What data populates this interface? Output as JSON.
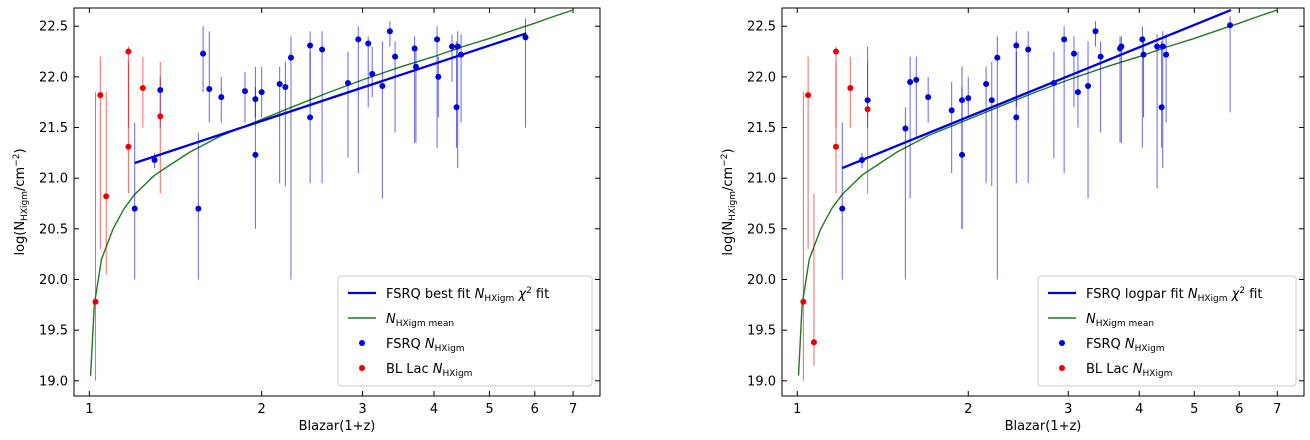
{
  "chart_data": [
    {
      "type": "scatter",
      "xlabel": "Blazar(1+z)",
      "ylabel_base": "log(N",
      "ylabel_sub": "HXigm",
      "ylabel_unit": "/cm",
      "ylabel_exp": "−2",
      "ylabel_close": ")",
      "xscale": "log",
      "xlim": [
        0.94,
        7.8
      ],
      "ylim": [
        18.85,
        22.68
      ],
      "xticks": [
        1,
        2,
        3,
        4,
        5,
        6,
        7
      ],
      "xtick_labels": [
        "1",
        "2",
        "3",
        "4",
        "5",
        "6",
        "7"
      ],
      "yticks": [
        19.0,
        19.5,
        20.0,
        20.5,
        21.0,
        21.5,
        22.0,
        22.5
      ],
      "ytick_labels": [
        "19.0",
        "19.5",
        "20.0",
        "20.5",
        "21.0",
        "21.5",
        "22.0",
        "22.5"
      ],
      "legend_position": "lower-right",
      "legend": [
        {
          "pre": "FSRQ best fit ",
          "var": "N",
          "sub": "HXigm",
          "post": " χ",
          "sup": "2",
          "post2": " fit",
          "kind": "line",
          "color": "#0000dd"
        },
        {
          "pre": "",
          "var": "N",
          "sub": "HXigm mean",
          "post": "",
          "sup": "",
          "post2": "",
          "kind": "thinline",
          "color": "#1f7a1f"
        },
        {
          "pre": "FSRQ ",
          "var": "N",
          "sub": "HXigm",
          "post": "",
          "sup": "",
          "post2": "",
          "kind": "dot",
          "color": "#0000dd"
        },
        {
          "pre": "BL Lac ",
          "var": "N",
          "sub": "HXigm",
          "post": "",
          "sup": "",
          "post2": "",
          "kind": "dot",
          "color": "#ee0000"
        }
      ],
      "fit_line": {
        "x": [
          1.2,
          5.8
        ],
        "y": [
          21.15,
          22.43
        ],
        "color": "#0000dd"
      },
      "mean_curve": {
        "x": [
          1.005,
          1.02,
          1.05,
          1.1,
          1.15,
          1.2,
          1.3,
          1.4,
          1.5,
          1.7,
          2.0,
          2.3,
          2.6,
          3.0,
          3.5,
          4.0,
          4.5,
          5.0,
          5.5,
          6.0,
          6.5,
          7.0
        ],
        "y": [
          19.05,
          19.75,
          20.2,
          20.5,
          20.7,
          20.84,
          21.03,
          21.15,
          21.26,
          21.42,
          21.58,
          21.72,
          21.84,
          21.97,
          22.1,
          22.2,
          22.3,
          22.38,
          22.46,
          22.53,
          22.6,
          22.66
        ],
        "color": "#1f7a1f"
      },
      "series": [
        {
          "name": "FSRQ",
          "color": "#0000dd",
          "points": [
            {
              "x": 1.2,
              "y": 20.7,
              "lo": 20.0,
              "hi": 21.55
            },
            {
              "x": 1.3,
              "y": 21.18,
              "lo": 21.1,
              "hi": 21.25
            },
            {
              "x": 1.33,
              "y": 21.87,
              "lo": 21.5,
              "hi": 22.0
            },
            {
              "x": 1.55,
              "y": 20.7,
              "lo": 20.0,
              "hi": 21.45
            },
            {
              "x": 1.58,
              "y": 22.23,
              "lo": 21.85,
              "hi": 22.5
            },
            {
              "x": 1.62,
              "y": 21.88,
              "lo": 21.55,
              "hi": 22.45
            },
            {
              "x": 1.7,
              "y": 21.8,
              "lo": 21.55,
              "hi": 22.0
            },
            {
              "x": 1.87,
              "y": 21.86,
              "lo": 21.55,
              "hi": 22.05
            },
            {
              "x": 1.95,
              "y": 21.78,
              "lo": 21.6,
              "hi": 22.1
            },
            {
              "x": 1.95,
              "y": 21.23,
              "lo": 20.5,
              "hi": 21.9
            },
            {
              "x": 2.0,
              "y": 21.85,
              "lo": 21.6,
              "hi": 22.1
            },
            {
              "x": 2.15,
              "y": 21.93,
              "lo": 20.95,
              "hi": 22.1
            },
            {
              "x": 2.2,
              "y": 21.9,
              "lo": 20.92,
              "hi": 22.15
            },
            {
              "x": 2.25,
              "y": 22.19,
              "lo": 20.0,
              "hi": 22.4
            },
            {
              "x": 2.43,
              "y": 22.31,
              "lo": 21.7,
              "hi": 22.45
            },
            {
              "x": 2.43,
              "y": 21.6,
              "lo": 20.95,
              "hi": 22.25
            },
            {
              "x": 2.55,
              "y": 22.27,
              "lo": 20.95,
              "hi": 22.45
            },
            {
              "x": 2.83,
              "y": 21.94,
              "lo": 21.2,
              "hi": 22.25
            },
            {
              "x": 2.95,
              "y": 22.37,
              "lo": 21.05,
              "hi": 22.5
            },
            {
              "x": 3.07,
              "y": 22.33,
              "lo": 21.7,
              "hi": 22.4
            },
            {
              "x": 3.12,
              "y": 22.03,
              "lo": 21.8,
              "hi": 22.3
            },
            {
              "x": 3.25,
              "y": 21.91,
              "lo": 20.8,
              "hi": 22.35
            },
            {
              "x": 3.35,
              "y": 22.45,
              "lo": 22.3,
              "hi": 22.55
            },
            {
              "x": 3.42,
              "y": 22.2,
              "lo": 21.45,
              "hi": 22.35
            },
            {
              "x": 3.7,
              "y": 22.28,
              "lo": 21.35,
              "hi": 22.4
            },
            {
              "x": 3.72,
              "y": 22.1,
              "lo": 21.35,
              "hi": 22.3
            },
            {
              "x": 4.05,
              "y": 22.37,
              "lo": 21.3,
              "hi": 22.5
            },
            {
              "x": 4.07,
              "y": 22.0,
              "lo": 21.6,
              "hi": 22.2
            },
            {
              "x": 4.3,
              "y": 22.3,
              "lo": 21.95,
              "hi": 22.42
            },
            {
              "x": 4.38,
              "y": 21.7,
              "lo": 21.3,
              "hi": 22.35
            },
            {
              "x": 4.4,
              "y": 22.3,
              "lo": 21.1,
              "hi": 22.45
            },
            {
              "x": 4.46,
              "y": 22.22,
              "lo": 21.55,
              "hi": 22.42
            },
            {
              "x": 5.78,
              "y": 22.39,
              "lo": 21.5,
              "hi": 22.58
            }
          ]
        },
        {
          "name": "BL Lac",
          "color": "#ee0000",
          "points": [
            {
              "x": 1.025,
              "y": 19.78,
              "lo": 19.0,
              "hi": 21.85
            },
            {
              "x": 1.045,
              "y": 21.82,
              "lo": 20.3,
              "hi": 22.2
            },
            {
              "x": 1.07,
              "y": 20.82,
              "lo": 20.05,
              "hi": 21.85
            },
            {
              "x": 1.17,
              "y": 22.25,
              "lo": 21.5,
              "hi": 22.3
            },
            {
              "x": 1.17,
              "y": 21.31,
              "lo": 20.85,
              "hi": 22.15
            },
            {
              "x": 1.24,
              "y": 21.89,
              "lo": 21.5,
              "hi": 22.2
            },
            {
              "x": 1.33,
              "y": 21.61,
              "lo": 20.85,
              "hi": 22.15
            }
          ]
        }
      ]
    },
    {
      "type": "scatter",
      "xlabel": "Blazar(1+z)",
      "ylabel_base": "log(N",
      "ylabel_sub": "HXigm",
      "ylabel_unit": "/cm",
      "ylabel_exp": "−2",
      "ylabel_close": ")",
      "xscale": "log",
      "xlim": [
        0.94,
        7.8
      ],
      "ylim": [
        18.85,
        22.68
      ],
      "xticks": [
        1,
        2,
        3,
        4,
        5,
        6,
        7
      ],
      "xtick_labels": [
        "1",
        "2",
        "3",
        "4",
        "5",
        "6",
        "7"
      ],
      "yticks": [
        19.0,
        19.5,
        20.0,
        20.5,
        21.0,
        21.5,
        22.0,
        22.5
      ],
      "ytick_labels": [
        "19.0",
        "19.5",
        "20.0",
        "20.5",
        "21.0",
        "21.5",
        "22.0",
        "22.5"
      ],
      "legend_position": "lower-right",
      "legend": [
        {
          "pre": "FSRQ logpar fit ",
          "var": "N",
          "sub": "HXigm",
          "post": " χ",
          "sup": "2",
          "post2": " fit",
          "kind": "line",
          "color": "#0000dd"
        },
        {
          "pre": "",
          "var": "N",
          "sub": "HXigm mean",
          "post": "",
          "sup": "",
          "post2": "",
          "kind": "thinline",
          "color": "#1f7a1f"
        },
        {
          "pre": "FSRQ ",
          "var": "N",
          "sub": "HXigm",
          "post": "",
          "sup": "",
          "post2": "",
          "kind": "dot",
          "color": "#0000dd"
        },
        {
          "pre": "BL Lac ",
          "var": "N",
          "sub": "HXigm",
          "post": "",
          "sup": "",
          "post2": "",
          "kind": "dot",
          "color": "#ee0000"
        }
      ],
      "fit_line": {
        "x": [
          1.2,
          5.8
        ],
        "y": [
          21.1,
          22.66
        ],
        "color": "#0000dd"
      },
      "mean_curve": {
        "x": [
          1.005,
          1.02,
          1.05,
          1.1,
          1.15,
          1.2,
          1.3,
          1.4,
          1.5,
          1.7,
          2.0,
          2.3,
          2.6,
          3.0,
          3.5,
          4.0,
          4.5,
          5.0,
          5.5,
          6.0,
          6.5,
          7.0
        ],
        "y": [
          19.05,
          19.75,
          20.2,
          20.5,
          20.7,
          20.84,
          21.03,
          21.15,
          21.26,
          21.42,
          21.58,
          21.72,
          21.84,
          21.97,
          22.1,
          22.2,
          22.3,
          22.38,
          22.46,
          22.53,
          22.6,
          22.66
        ],
        "color": "#1f7a1f"
      },
      "series": [
        {
          "name": "FSRQ",
          "color": "#0000dd",
          "points": [
            {
              "x": 1.2,
              "y": 20.7,
              "lo": 20.0,
              "hi": 21.55
            },
            {
              "x": 1.3,
              "y": 21.18,
              "lo": 21.1,
              "hi": 21.25
            },
            {
              "x": 1.33,
              "y": 21.77,
              "lo": 21.5,
              "hi": 22.3
            },
            {
              "x": 1.55,
              "y": 21.49,
              "lo": 20.0,
              "hi": 21.7
            },
            {
              "x": 1.58,
              "y": 21.95,
              "lo": 20.8,
              "hi": 22.2
            },
            {
              "x": 1.62,
              "y": 21.97,
              "lo": 21.4,
              "hi": 22.2
            },
            {
              "x": 1.7,
              "y": 21.8,
              "lo": 21.55,
              "hi": 22.0
            },
            {
              "x": 1.87,
              "y": 21.67,
              "lo": 21.05,
              "hi": 21.95
            },
            {
              "x": 1.95,
              "y": 21.77,
              "lo": 20.5,
              "hi": 22.1
            },
            {
              "x": 1.95,
              "y": 21.23,
              "lo": 20.5,
              "hi": 21.9
            },
            {
              "x": 2.0,
              "y": 21.79,
              "lo": 21.6,
              "hi": 22.0
            },
            {
              "x": 2.15,
              "y": 21.93,
              "lo": 20.95,
              "hi": 22.1
            },
            {
              "x": 2.2,
              "y": 21.77,
              "lo": 20.92,
              "hi": 22.15
            },
            {
              "x": 2.25,
              "y": 22.19,
              "lo": 20.0,
              "hi": 22.4
            },
            {
              "x": 2.43,
              "y": 22.31,
              "lo": 21.7,
              "hi": 22.45
            },
            {
              "x": 2.43,
              "y": 21.6,
              "lo": 20.95,
              "hi": 22.25
            },
            {
              "x": 2.55,
              "y": 22.27,
              "lo": 20.95,
              "hi": 22.45
            },
            {
              "x": 2.83,
              "y": 21.94,
              "lo": 21.2,
              "hi": 22.25
            },
            {
              "x": 2.95,
              "y": 22.37,
              "lo": 21.05,
              "hi": 22.5
            },
            {
              "x": 3.07,
              "y": 22.23,
              "lo": 21.7,
              "hi": 22.4
            },
            {
              "x": 3.12,
              "y": 21.85,
              "lo": 21.5,
              "hi": 22.25
            },
            {
              "x": 3.25,
              "y": 21.91,
              "lo": 20.8,
              "hi": 22.35
            },
            {
              "x": 3.35,
              "y": 22.45,
              "lo": 22.3,
              "hi": 22.55
            },
            {
              "x": 3.42,
              "y": 22.2,
              "lo": 21.45,
              "hi": 22.35
            },
            {
              "x": 3.7,
              "y": 22.28,
              "lo": 21.35,
              "hi": 22.4
            },
            {
              "x": 3.72,
              "y": 22.3,
              "lo": 21.35,
              "hi": 22.4
            },
            {
              "x": 4.05,
              "y": 22.37,
              "lo": 21.3,
              "hi": 22.5
            },
            {
              "x": 4.07,
              "y": 22.22,
              "lo": 21.6,
              "hi": 22.4
            },
            {
              "x": 4.3,
              "y": 22.3,
              "lo": 20.9,
              "hi": 22.42
            },
            {
              "x": 4.38,
              "y": 21.7,
              "lo": 21.3,
              "hi": 22.35
            },
            {
              "x": 4.4,
              "y": 22.3,
              "lo": 21.1,
              "hi": 22.45
            },
            {
              "x": 4.46,
              "y": 22.22,
              "lo": 21.55,
              "hi": 22.42
            },
            {
              "x": 5.78,
              "y": 22.51,
              "lo": 21.65,
              "hi": 22.6
            }
          ]
        },
        {
          "name": "BL Lac",
          "color": "#ee0000",
          "points": [
            {
              "x": 1.025,
              "y": 19.78,
              "lo": 19.0,
              "hi": 21.85
            },
            {
              "x": 1.045,
              "y": 21.82,
              "lo": 20.3,
              "hi": 22.2
            },
            {
              "x": 1.07,
              "y": 19.38,
              "lo": 19.15,
              "hi": 20.85
            },
            {
              "x": 1.17,
              "y": 22.25,
              "lo": 21.5,
              "hi": 22.3
            },
            {
              "x": 1.17,
              "y": 21.31,
              "lo": 20.85,
              "hi": 22.15
            },
            {
              "x": 1.24,
              "y": 21.89,
              "lo": 21.5,
              "hi": 22.2
            },
            {
              "x": 1.33,
              "y": 21.68,
              "lo": 20.85,
              "hi": 22.15
            }
          ]
        }
      ]
    }
  ]
}
